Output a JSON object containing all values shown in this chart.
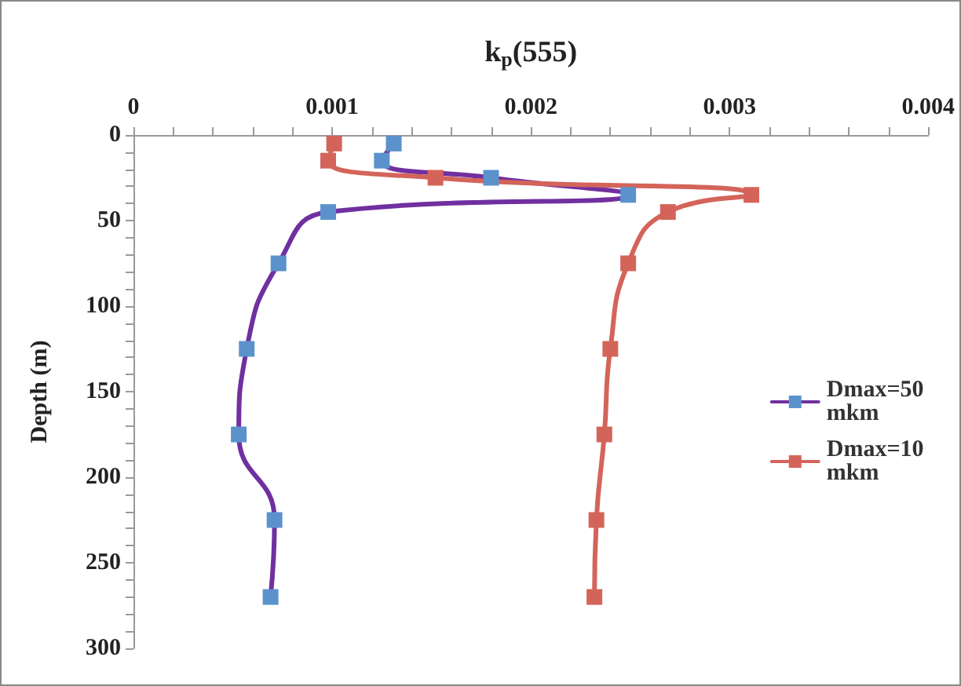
{
  "chart_data": {
    "type": "line",
    "xlabel": "k$_{p}$(555)",
    "ylabel": "Depth (m)",
    "xlim": [
      0,
      0.004
    ],
    "xticks": [
      0,
      0.001,
      0.002,
      0.003,
      0.004
    ],
    "ylim": [
      300,
      0
    ],
    "yticks": [
      0,
      50,
      100,
      150,
      200,
      250,
      300
    ],
    "grid": false,
    "legend": "right",
    "marker": "square",
    "line_style": "solid",
    "series": [
      {
        "name": "Dmax=50 mkm",
        "color": "#7030a0",
        "colors": [
          "#5b92cc",
          "#5b92cc",
          "#5b92cc",
          "#5b92cc",
          "#5b92cc",
          "#5b92cc",
          "#5b92cc",
          "#5b92cc",
          "#5b92cc",
          "#5b92cc"
        ],
        "x": [
          0.00131,
          0.00125,
          0.0018,
          0.00249,
          0.00098,
          0.00073,
          0.00057,
          0.00053,
          0.00071,
          0.00069
        ],
        "values": [
          5,
          15,
          25,
          35,
          45,
          75,
          125,
          175,
          225,
          270
        ]
      },
      {
        "name": "Dmax=10 mkm",
        "color": "#d4645a",
        "colors": [
          "#d4645a",
          "#d4645a",
          "#d4645a",
          "#d4645a",
          "#d4645a",
          "#d4645a",
          "#d4645a",
          "#d4645a",
          "#d4645a",
          "#d4645a"
        ],
        "x": [
          0.00101,
          0.00098,
          0.00152,
          0.00311,
          0.00269,
          0.00249,
          0.0024,
          0.00237,
          0.00233,
          0.00232
        ],
        "values": [
          5,
          15,
          25,
          35,
          45,
          75,
          125,
          175,
          225,
          270
        ]
      }
    ]
  }
}
